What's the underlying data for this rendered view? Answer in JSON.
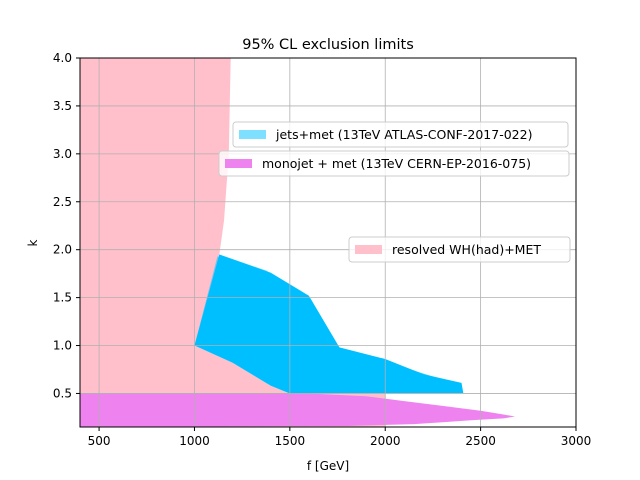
{
  "chart_data": {
    "type": "area",
    "title": "95% CL exclusion limits",
    "xlabel": "f [GeV]",
    "ylabel": "k",
    "xlim": [
      400,
      3000
    ],
    "ylim": [
      0.15,
      4.0
    ],
    "xticks": [
      500,
      1000,
      1500,
      2000,
      2500,
      3000
    ],
    "yticks": [
      0.5,
      1.0,
      1.5,
      2.0,
      2.5,
      3.0,
      3.5,
      4.0
    ],
    "xtick_labels": [
      "500",
      "1000",
      "1500",
      "2000",
      "2500",
      "3000"
    ],
    "ytick_labels": [
      "0.5",
      "1.0",
      "1.5",
      "2.0",
      "2.5",
      "3.0",
      "3.5",
      "4.0"
    ],
    "grid": true,
    "series": [
      {
        "name": "resolved WH(had)+MET",
        "color": "#ffc0cb",
        "legend_position": "center-right",
        "regions": [
          [
            [
              400,
              4.0
            ],
            [
              1190,
              4.0
            ],
            [
              1180,
              3.0
            ],
            [
              1155,
              2.3
            ],
            [
              1130,
              1.95
            ],
            [
              1000,
              1.0
            ],
            [
              1200,
              0.82
            ],
            [
              1400,
              0.58
            ],
            [
              1500,
              0.5
            ],
            [
              1700,
              0.5
            ],
            [
              2000,
              0.5
            ],
            [
              2000,
              0.15
            ],
            [
              400,
              0.15
            ]
          ]
        ]
      },
      {
        "name": "jets+met (13TeV ATLAS-CONF-2017-022)",
        "color": "#00bfff",
        "legend_position": "upper-right",
        "regions": [
          [
            [
              1000,
              1.0
            ],
            [
              1130,
              1.95
            ],
            [
              1400,
              1.76
            ],
            [
              1600,
              1.52
            ],
            [
              1760,
              0.98
            ],
            [
              2000,
              0.86
            ],
            [
              2200,
              0.7
            ],
            [
              2400,
              0.61
            ],
            [
              2410,
              0.5
            ],
            [
              1500,
              0.5
            ],
            [
              1400,
              0.58
            ],
            [
              1200,
              0.82
            ]
          ],
          [
            [
              1130,
              1.95
            ],
            [
              1380,
              1.78
            ],
            [
              1560,
              1.45
            ],
            [
              1700,
              0.97
            ],
            [
              1950,
              0.88
            ],
            [
              2180,
              0.72
            ],
            [
              2380,
              0.6
            ],
            [
              2390,
              0.52
            ],
            [
              1500,
              0.52
            ],
            [
              1400,
              0.6
            ],
            [
              1200,
              0.84
            ],
            [
              1000,
              1.0
            ]
          ],
          [
            [
              1120,
              1.93
            ],
            [
              1350,
              1.75
            ],
            [
              1520,
              1.4
            ],
            [
              1650,
              0.96
            ],
            [
              1900,
              0.9
            ],
            [
              2150,
              0.74
            ],
            [
              2360,
              0.6
            ],
            [
              2370,
              0.54
            ],
            [
              1500,
              0.54
            ],
            [
              1400,
              0.62
            ],
            [
              1200,
              0.85
            ],
            [
              1000,
              1.0
            ]
          ]
        ]
      },
      {
        "name": "monojet + met (13TeV CERN-EP-2016-075)",
        "color": "#ee82ee",
        "legend_position": "upper-right",
        "regions": [
          [
            [
              400,
              0.5
            ],
            [
              1600,
              0.5
            ],
            [
              1900,
              0.47
            ],
            [
              2100,
              0.42
            ],
            [
              2300,
              0.37
            ],
            [
              2500,
              0.32
            ],
            [
              2620,
              0.28
            ],
            [
              2680,
              0.26
            ],
            [
              2620,
              0.24
            ],
            [
              2450,
              0.22
            ],
            [
              2300,
              0.2
            ],
            [
              2150,
              0.18
            ],
            [
              1950,
              0.17
            ],
            [
              1800,
              0.16
            ],
            [
              400,
              0.15
            ]
          ]
        ]
      }
    ]
  }
}
